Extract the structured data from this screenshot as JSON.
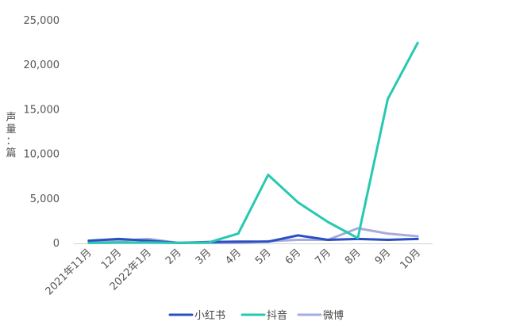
{
  "chart_data": {
    "type": "line",
    "ylabel": "声量：篇",
    "ylim": [
      0,
      25000
    ],
    "y_ticks": [
      "0",
      "5,000",
      "10,000",
      "15,000",
      "20,000",
      "25,000"
    ],
    "y_tick_values": [
      0,
      5000,
      10000,
      15000,
      20000,
      25000
    ],
    "categories": [
      "2021年11月",
      "12月",
      "2022年1月",
      "2月",
      "3月",
      "4月",
      "5月",
      "6月",
      "7月",
      "8月",
      "9月",
      "10月"
    ],
    "series": [
      {
        "name": "小红书",
        "color": "#2a4fc3",
        "values": [
          300,
          500,
          300,
          50,
          150,
          200,
          200,
          900,
          400,
          500,
          400,
          500
        ]
      },
      {
        "name": "抖音",
        "color": "#26c9b0",
        "values": [
          50,
          100,
          100,
          50,
          100,
          1100,
          7700,
          4600,
          2400,
          600,
          16200,
          22500
        ]
      },
      {
        "name": "微博",
        "color": "#a6acdf",
        "values": [
          250,
          300,
          500,
          50,
          50,
          50,
          250,
          400,
          400,
          1700,
          1100,
          800
        ]
      }
    ],
    "legend": "bottom",
    "grid": false
  }
}
